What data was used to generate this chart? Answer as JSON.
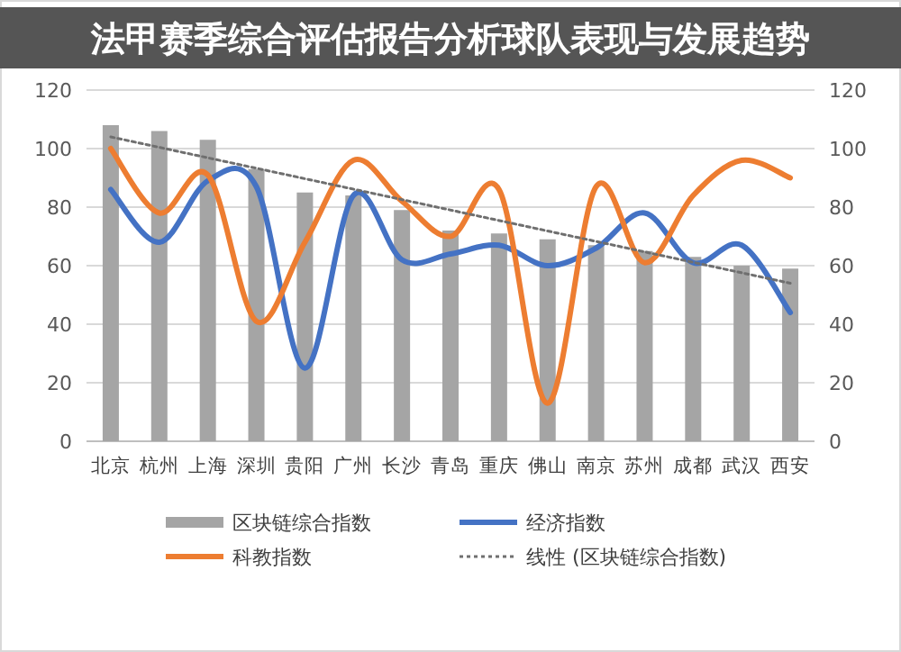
{
  "chart_data": {
    "type": "bar",
    "title": "法甲赛季综合评估报告分析球队表现与发展趋势",
    "categories": [
      "北京",
      "杭州",
      "上海",
      "深圳",
      "贵阳",
      "广州",
      "长沙",
      "青岛",
      "重庆",
      "佛山",
      "南京",
      "苏州",
      "成都",
      "武汉",
      "西安"
    ],
    "series": [
      {
        "name": "区块链综合指数",
        "color": "#a5a5a5",
        "values": [
          108,
          106,
          103,
          93,
          85,
          84,
          79,
          72,
          71,
          69,
          67,
          65,
          63,
          60,
          59
        ]
      },
      {
        "name": "经济指数",
        "type": "line",
        "color": "#4472c4",
        "values": [
          86,
          68,
          89,
          87,
          25,
          84,
          62,
          64,
          67,
          60,
          66,
          78,
          61,
          67,
          44
        ]
      },
      {
        "name": "科教指数",
        "type": "line",
        "color": "#ed7d31",
        "values": [
          100,
          78,
          91,
          41,
          68,
          96,
          82,
          70,
          86,
          13,
          87,
          61,
          84,
          96,
          90
        ]
      },
      {
        "name": "线性 (区块链综合指数)",
        "type": "line",
        "color": "#6f6f6f",
        "line_style": "dotted",
        "x": [
          "北京",
          "西安"
        ],
        "values": [
          104,
          54
        ]
      }
    ],
    "ylim": [
      0,
      120
    ],
    "yticks": [
      0,
      20,
      40,
      60,
      80,
      100,
      120
    ],
    "y2lim": [
      0,
      120
    ],
    "y2ticks": [
      0,
      20,
      40,
      60,
      80,
      100,
      120
    ],
    "grid": "y",
    "legend": "bottom"
  }
}
